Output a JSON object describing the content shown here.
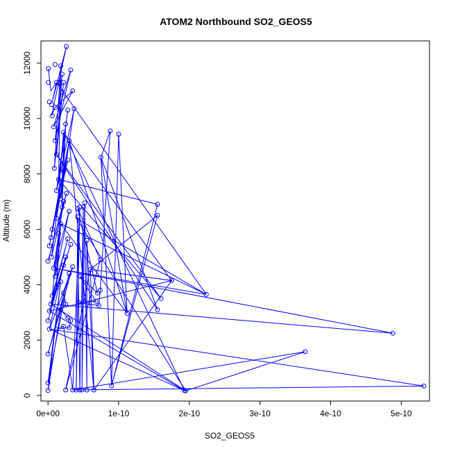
{
  "chart_data": {
    "type": "line",
    "title": "ATOM2 Northbound SO2_GEOS5",
    "xlabel": "SO2_GEOS5",
    "ylabel": "Altitude (m)",
    "xlim": [
      -1e-11,
      5.4e-10
    ],
    "ylim": [
      -200,
      12800
    ],
    "xticks": [
      0,
      1e-10,
      2e-10,
      3e-10,
      4e-10,
      5e-10
    ],
    "xtick_labels": [
      "0e+00",
      "1e-10",
      "2e-10",
      "3e-10",
      "4e-10",
      "5e-10"
    ],
    "yticks": [
      0,
      2000,
      4000,
      6000,
      8000,
      10000,
      12000
    ],
    "ytick_labels": [
      "0",
      "2000",
      "4000",
      "6000",
      "8000",
      "10000",
      "12000"
    ],
    "grid": false,
    "series": [
      {
        "color": "#0000ff",
        "marker": "open-circle",
        "points": [
          [
            5e-13,
            11800
          ],
          [
            5e-13,
            11300
          ],
          [
            2e-12,
            10600
          ],
          [
            5e-12,
            10500
          ],
          [
            1e-11,
            10400
          ],
          [
            6e-12,
            10100
          ],
          [
            8e-12,
            9700
          ],
          [
            1e-11,
            9200
          ],
          [
            1.2e-11,
            8700
          ],
          [
            9e-12,
            8200
          ],
          [
            1.5e-11,
            7800
          ],
          [
            1.2e-11,
            7400
          ],
          [
            1.8e-11,
            7100
          ],
          [
            2e-11,
            6800
          ],
          [
            1.2e-11,
            6400
          ],
          [
            6e-12,
            6000
          ],
          [
            4e-12,
            5700
          ],
          [
            2e-12,
            5400
          ],
          [
            5e-12,
            5000
          ],
          [
            0.0,
            4850
          ],
          [
            8e-12,
            4600
          ],
          [
            1e-11,
            4300
          ],
          [
            1.2e-11,
            3900
          ],
          [
            6e-12,
            3600
          ],
          [
            4e-12,
            3300
          ],
          [
            2e-12,
            3050
          ],
          [
            0.0,
            2700
          ],
          [
            2e-12,
            2400
          ],
          [
            0.0,
            1500
          ],
          [
            0.0,
            450
          ],
          [
            0.0,
            180
          ],
          [
            1e-11,
            11950
          ],
          [
            1.8e-11,
            11900
          ],
          [
            2e-11,
            11600
          ],
          [
            2.6e-11,
            12600
          ],
          [
            1.6e-11,
            11300
          ],
          [
            2.2e-11,
            11300
          ],
          [
            3.2e-11,
            11750
          ],
          [
            3.5e-11,
            11000
          ],
          [
            2e-11,
            10950
          ],
          [
            1.2e-11,
            11300
          ],
          [
            2.8e-11,
            10300
          ],
          [
            3.7e-11,
            10350
          ],
          [
            2.5e-11,
            9800
          ],
          [
            2.2e-11,
            9500
          ],
          [
            3e-11,
            9200
          ],
          [
            2.8e-11,
            8500
          ],
          [
            2.2e-11,
            8100
          ],
          [
            1.8e-11,
            7700
          ],
          [
            2.6e-11,
            7300
          ],
          [
            2.2e-11,
            7000
          ],
          [
            3e-11,
            6650
          ],
          [
            1.8e-11,
            6200
          ],
          [
            1.5e-11,
            5850
          ],
          [
            2.8e-11,
            5650
          ],
          [
            3.2e-11,
            5450
          ],
          [
            2.5e-11,
            5000
          ],
          [
            2.2e-11,
            4700
          ],
          [
            3.5e-11,
            4650
          ],
          [
            3e-11,
            4400
          ],
          [
            1.8e-11,
            4100
          ],
          [
            2.2e-11,
            3700
          ],
          [
            2.5e-11,
            3300
          ],
          [
            1.8e-11,
            3100
          ],
          [
            2.8e-11,
            2800
          ],
          [
            3.2e-11,
            2700
          ],
          [
            3e-11,
            2450
          ],
          [
            1.2e-11,
            2400
          ],
          [
            2.2e-11,
            2500
          ],
          [
            4.5e-11,
            6800
          ],
          [
            4.2e-11,
            6450
          ],
          [
            5e-11,
            6800
          ],
          [
            5.2e-11,
            6950
          ],
          [
            4.2e-11,
            6750
          ],
          [
            5.5e-11,
            5600
          ],
          [
            6e-11,
            4550
          ],
          [
            7.4e-11,
            4900
          ],
          [
            4.5e-11,
            4300
          ],
          [
            7e-11,
            3700
          ],
          [
            6.8e-11,
            3400
          ],
          [
            7.2e-11,
            3250
          ],
          [
            7.4e-11,
            3800
          ],
          [
            4.4e-11,
            3350
          ],
          [
            3.5e-11,
            200
          ],
          [
            4e-11,
            200
          ],
          [
            4.5e-11,
            200
          ],
          [
            4.8e-11,
            200
          ],
          [
            5.5e-11,
            200
          ],
          [
            6.5e-11,
            200
          ],
          [
            2.5e-11,
            200
          ],
          [
            7.5e-11,
            8600
          ],
          [
            8.8e-11,
            9550
          ],
          [
            1e-10,
            9430
          ],
          [
            1.12e-10,
            2960
          ],
          [
            9e-11,
            350
          ],
          [
            1.55e-10,
            6900
          ],
          [
            1.55e-10,
            6500
          ],
          [
            1.55e-10,
            3100
          ],
          [
            1.6e-10,
            3500
          ],
          [
            1.75e-10,
            4150
          ],
          [
            1.93e-10,
            180
          ],
          [
            1.95e-10,
            170
          ],
          [
            2.24e-10,
            3650
          ],
          [
            3.64e-10,
            1580
          ],
          [
            4.88e-10,
            2250
          ],
          [
            5.32e-10,
            340
          ]
        ],
        "path": [
          [
            5e-13,
            11800
          ],
          [
            4e-12,
            11000
          ],
          [
            1.2e-11,
            11300
          ],
          [
            6e-12,
            10600
          ],
          [
            2.6e-11,
            12600
          ],
          [
            5e-12,
            10100
          ],
          [
            1e-11,
            10400
          ],
          [
            3.5e-11,
            11000
          ],
          [
            8e-12,
            9700
          ],
          [
            3.2e-11,
            11750
          ],
          [
            1e-11,
            9200
          ],
          [
            2e-11,
            11600
          ],
          [
            1.2e-11,
            8700
          ],
          [
            2.2e-11,
            11300
          ],
          [
            9e-12,
            8200
          ],
          [
            1.8e-11,
            11900
          ],
          [
            1.5e-11,
            7800
          ],
          [
            2.8e-11,
            10300
          ],
          [
            1.2e-11,
            7400
          ],
          [
            3.7e-11,
            10350
          ],
          [
            1.8e-11,
            7100
          ],
          [
            2.5e-11,
            9800
          ],
          [
            2e-11,
            6800
          ],
          [
            2.2e-11,
            9500
          ],
          [
            1.2e-11,
            6400
          ],
          [
            3e-11,
            9200
          ],
          [
            6e-12,
            6000
          ],
          [
            2.8e-11,
            8500
          ],
          [
            4e-12,
            5700
          ],
          [
            2.2e-11,
            8100
          ],
          [
            2e-12,
            5400
          ],
          [
            1.8e-11,
            7700
          ],
          [
            5e-12,
            5000
          ],
          [
            2.6e-11,
            7300
          ],
          [
            0.0,
            4850
          ],
          [
            2.2e-11,
            7000
          ],
          [
            8e-12,
            4600
          ],
          [
            3e-11,
            6650
          ],
          [
            1e-11,
            4300
          ],
          [
            1.8e-11,
            6200
          ],
          [
            1.2e-11,
            3900
          ],
          [
            1.5e-11,
            5850
          ],
          [
            6e-12,
            3600
          ],
          [
            2.8e-11,
            5650
          ],
          [
            4e-12,
            3300
          ],
          [
            3.2e-11,
            5450
          ],
          [
            2e-12,
            3050
          ],
          [
            2.5e-11,
            5000
          ],
          [
            0.0,
            2700
          ],
          [
            2.2e-11,
            4700
          ],
          [
            2e-12,
            2400
          ],
          [
            3.5e-11,
            4650
          ],
          [
            0.0,
            1500
          ],
          [
            3e-11,
            4400
          ],
          [
            0.0,
            450
          ],
          [
            1.8e-11,
            4100
          ],
          [
            0.0,
            180
          ],
          [
            2.2e-11,
            3700
          ],
          [
            2.5e-11,
            3300
          ],
          [
            1.8e-11,
            3100
          ],
          [
            2.8e-11,
            2800
          ],
          [
            3.2e-11,
            2700
          ],
          [
            3e-11,
            2450
          ],
          [
            1.2e-11,
            2400
          ],
          [
            2.2e-11,
            2500
          ],
          [
            3.5e-11,
            200
          ],
          [
            4.5e-11,
            6800
          ],
          [
            4e-11,
            200
          ],
          [
            4.2e-11,
            6450
          ],
          [
            4.5e-11,
            200
          ],
          [
            5e-11,
            6800
          ],
          [
            4.8e-11,
            200
          ],
          [
            5.2e-11,
            6950
          ],
          [
            5.5e-11,
            200
          ],
          [
            5.5e-11,
            5600
          ],
          [
            6.5e-11,
            200
          ],
          [
            6e-11,
            4550
          ],
          [
            2.5e-11,
            200
          ],
          [
            7.4e-11,
            4900
          ],
          [
            4.2e-11,
            6750
          ],
          [
            7e-11,
            3700
          ],
          [
            4.5e-11,
            4300
          ],
          [
            6.8e-11,
            3400
          ],
          [
            4.4e-11,
            3350
          ],
          [
            7.2e-11,
            3250
          ],
          [
            7.4e-11,
            3800
          ],
          [
            8.8e-11,
            9550
          ],
          [
            7.5e-11,
            8600
          ],
          [
            9e-11,
            350
          ],
          [
            1e-10,
            9430
          ],
          [
            1.12e-10,
            2960
          ],
          [
            7.5e-11,
            8600
          ],
          [
            1.55e-10,
            3100
          ],
          [
            1.2e-11,
            8700
          ],
          [
            1.6e-10,
            3500
          ],
          [
            1.5e-11,
            7800
          ],
          [
            1.55e-10,
            6900
          ],
          [
            9e-11,
            350
          ],
          [
            1.55e-10,
            6500
          ],
          [
            6e-11,
            4550
          ],
          [
            1.75e-10,
            4150
          ],
          [
            2.2e-11,
            9500
          ],
          [
            1.93e-10,
            180
          ],
          [
            1.95e-10,
            170
          ],
          [
            4e-11,
            6400
          ],
          [
            2.24e-10,
            3650
          ],
          [
            8e-12,
            4600
          ],
          [
            4.88e-10,
            2250
          ],
          [
            4e-12,
            3300
          ],
          [
            1.95e-10,
            170
          ],
          [
            3.64e-10,
            1580
          ],
          [
            3.5e-11,
            200
          ],
          [
            5.32e-10,
            340
          ],
          [
            2e-12,
            2400
          ],
          [
            1.93e-10,
            180
          ],
          [
            2e-12,
            3050
          ],
          [
            1.75e-10,
            4150
          ],
          [
            6.5e-11,
            200
          ],
          [
            3e-11,
            9200
          ],
          [
            1.12e-10,
            2960
          ],
          [
            1.8e-11,
            6200
          ],
          [
            2.24e-10,
            3650
          ],
          [
            1.2e-11,
            11300
          ]
        ]
      }
    ]
  }
}
